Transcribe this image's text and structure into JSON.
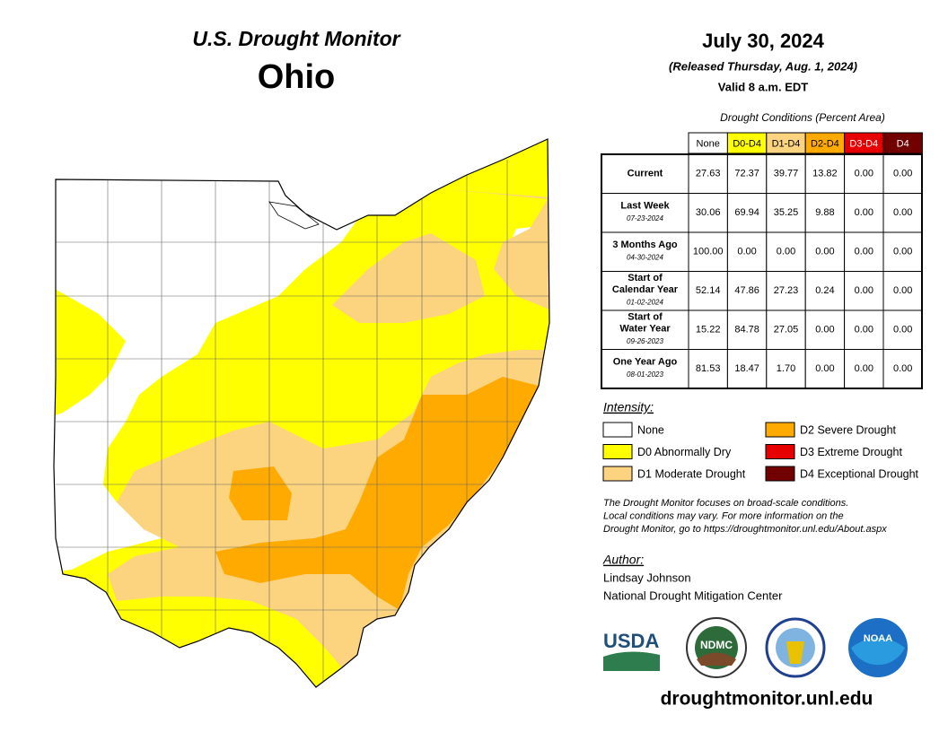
{
  "header": {
    "title": "U.S. Drought Monitor",
    "state": "Ohio",
    "date": "July 30, 2024",
    "released": "(Released Thursday, Aug. 1, 2024)",
    "valid": "Valid 8 a.m. EDT"
  },
  "table": {
    "caption": "Drought Conditions (Percent Area)",
    "columns": [
      "None",
      "D0-D4",
      "D1-D4",
      "D2-D4",
      "D3-D4",
      "D4"
    ],
    "rows": [
      {
        "label": [
          "Current"
        ],
        "values": [
          "27.63",
          "72.37",
          "39.77",
          "13.82",
          "0.00",
          "0.00"
        ]
      },
      {
        "label": [
          "Last Week"
        ],
        "date": "07-23-2024",
        "values": [
          "30.06",
          "69.94",
          "35.25",
          "9.88",
          "0.00",
          "0.00"
        ]
      },
      {
        "label": [
          "3 Months Ago"
        ],
        "date": "04-30-2024",
        "values": [
          "100.00",
          "0.00",
          "0.00",
          "0.00",
          "0.00",
          "0.00"
        ]
      },
      {
        "label": [
          "Start of",
          "Calendar Year"
        ],
        "date": "01-02-2024",
        "values": [
          "52.14",
          "47.86",
          "27.23",
          "0.24",
          "0.00",
          "0.00"
        ]
      },
      {
        "label": [
          "Start of",
          "Water Year"
        ],
        "date": "09-26-2023",
        "values": [
          "15.22",
          "84.78",
          "27.05",
          "0.00",
          "0.00",
          "0.00"
        ]
      },
      {
        "label": [
          "One Year Ago"
        ],
        "date": "08-01-2023",
        "values": [
          "81.53",
          "18.47",
          "1.70",
          "0.00",
          "0.00",
          "0.00"
        ]
      }
    ]
  },
  "legend": {
    "title": "Intensity:",
    "items": [
      "None",
      "D0 Abnormally Dry",
      "D1 Moderate Drought",
      "D2 Severe Drought",
      "D3 Extreme Drought",
      "D4 Exceptional Drought"
    ]
  },
  "note": [
    "The Drought Monitor focuses on broad-scale conditions.",
    "Local conditions may vary. For more information on the",
    "Drought Monitor, go to https://droughtmonitor.unl.edu/About.aspx"
  ],
  "author": {
    "heading": "Author:",
    "name": "Lindsay Johnson",
    "org": "National Drought Mitigation Center"
  },
  "logos": [
    "USDA",
    "NDMC",
    "NOAA"
  ],
  "footer": "droughtmonitor.unl.edu"
}
